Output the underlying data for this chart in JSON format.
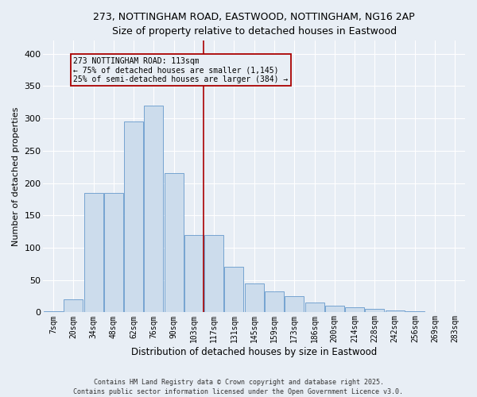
{
  "title": "273, NOTTINGHAM ROAD, EASTWOOD, NOTTINGHAM, NG16 2AP",
  "subtitle": "Size of property relative to detached houses in Eastwood",
  "xlabel": "Distribution of detached houses by size in Eastwood",
  "ylabel": "Number of detached properties",
  "categories": [
    "7sqm",
    "20sqm",
    "34sqm",
    "48sqm",
    "62sqm",
    "76sqm",
    "90sqm",
    "103sqm",
    "117sqm",
    "131sqm",
    "145sqm",
    "159sqm",
    "173sqm",
    "186sqm",
    "200sqm",
    "214sqm",
    "228sqm",
    "242sqm",
    "256sqm",
    "269sqm",
    "283sqm"
  ],
  "values": [
    2,
    20,
    185,
    185,
    295,
    320,
    215,
    120,
    120,
    70,
    45,
    32,
    25,
    15,
    10,
    8,
    5,
    3,
    2,
    1,
    1
  ],
  "bar_color": "#ccdcec",
  "bar_edge_color": "#6699cc",
  "bg_color": "#e8eef5",
  "grid_color": "#ffffff",
  "vline_color": "#aa0000",
  "vline_pos": 7.48,
  "annotation_title": "273 NOTTINGHAM ROAD: 113sqm",
  "annotation_line1": "← 75% of detached houses are smaller (1,145)",
  "annotation_line2": "25% of semi-detached houses are larger (384) →",
  "annotation_box_edge_color": "#aa0000",
  "annotation_text_color": "#000000",
  "footer": "Contains HM Land Registry data © Crown copyright and database right 2025.\nContains public sector information licensed under the Open Government Licence v3.0.",
  "ylim": [
    0,
    420
  ],
  "yticks": [
    0,
    50,
    100,
    150,
    200,
    250,
    300,
    350,
    400
  ]
}
